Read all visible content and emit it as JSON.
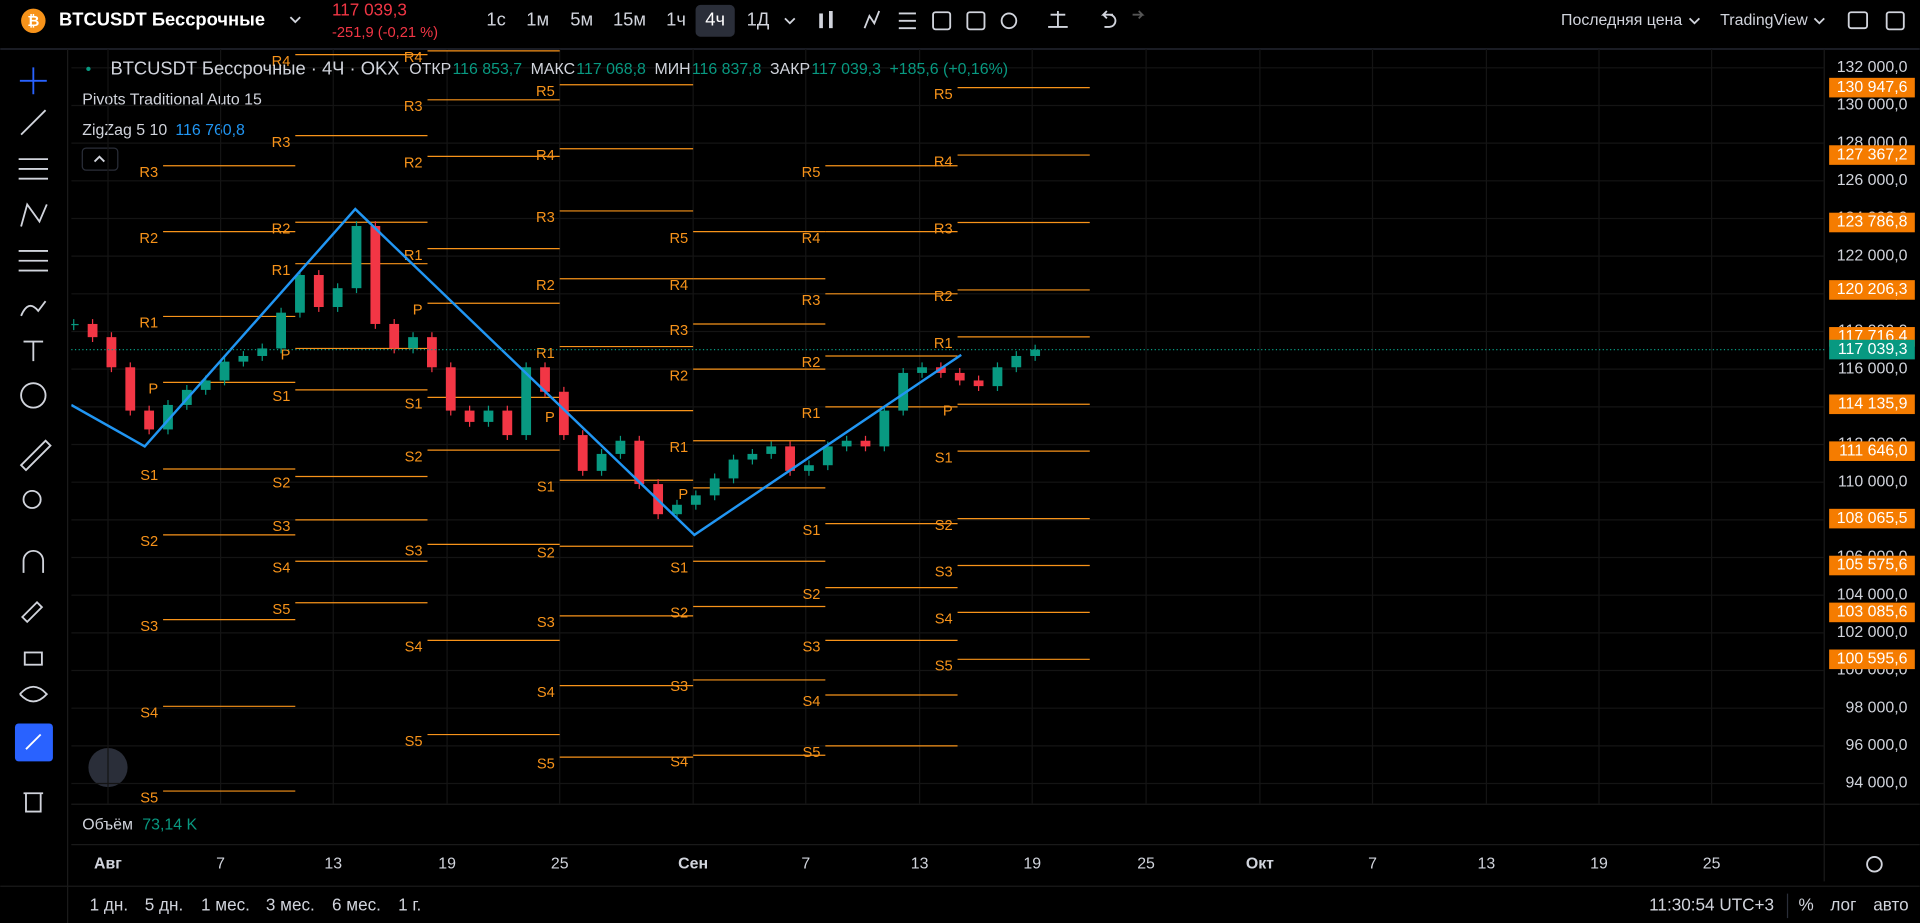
{
  "header": {
    "symbol": "BTCUSDT Бессрочные",
    "price": "117 039,3",
    "change": "-251,9 (-0,21 %)",
    "intervals": [
      "1с",
      "1м",
      "5м",
      "15м",
      "1ч",
      "4ч",
      "1Д"
    ],
    "price_type": "Последняя цена",
    "broker": "TradingView"
  },
  "legend": {
    "title": "BTCUSDT Бессрочные · 4Ч · OKX",
    "ohlc": [
      {
        "label": "ОТКР",
        "value": "116 853,7"
      },
      {
        "label": "МАКС",
        "value": "117 068,8"
      },
      {
        "label": "МИН",
        "value": "116 837,8"
      },
      {
        "label": "ЗАКР",
        "value": "117 039,3"
      }
    ],
    "change": "+185,6 (+0,16%)",
    "indicators": [
      {
        "name": "Pivots Traditional Auto 15"
      },
      {
        "name": "ZigZag 5 10",
        "value": "116 760,8"
      }
    ],
    "volume": {
      "name": "Объём",
      "value": "73,14 K"
    }
  },
  "price_axis": {
    "ylim": [
      92900,
      133000
    ],
    "ticks": [
      {
        "value": 132000,
        "label": "132 000,0"
      },
      {
        "value": 130000,
        "label": "130 000,0"
      },
      {
        "value": 128000,
        "label": "128 000,0"
      },
      {
        "value": 126000,
        "label": "126 000,0"
      },
      {
        "value": 124000,
        "label": "124 000,0"
      },
      {
        "value": 122000,
        "label": "122 000,0"
      },
      {
        "value": 120000,
        "label": "120 000,0"
      },
      {
        "value": 118000,
        "label": "118 000,0"
      },
      {
        "value": 116000,
        "label": "116 000,0"
      },
      {
        "value": 114000,
        "label": "114 000,0"
      },
      {
        "value": 112000,
        "label": "112 000,0"
      },
      {
        "value": 110000,
        "label": "110 000,0"
      },
      {
        "value": 108000,
        "label": "108 000,0"
      },
      {
        "value": 106000,
        "label": "106 000,0"
      },
      {
        "value": 104000,
        "label": "104 000,0"
      },
      {
        "value": 102000,
        "label": "102 000,0"
      },
      {
        "value": 100000,
        "label": "100 000,0"
      },
      {
        "value": 98000,
        "label": "98 000,0"
      },
      {
        "value": 96000,
        "label": "96 000,0"
      },
      {
        "value": 94000,
        "label": "94 000,0"
      }
    ],
    "last_price": {
      "value": 117039.3,
      "label": "117 039,3"
    }
  },
  "time_axis": [
    "Авг",
    "7",
    "13",
    "19",
    "25",
    "Сен",
    "7",
    "13",
    "19",
    "25",
    "Окт",
    "7",
    "13",
    "19",
    "25"
  ],
  "candles": [
    118400,
    117700,
    116100,
    113800,
    112800,
    114100,
    114900,
    115400,
    116400,
    116700,
    117100,
    119000,
    121000,
    119300,
    120300,
    123600,
    118400,
    117100,
    117700,
    116100,
    113800,
    113200,
    113800,
    112500,
    116100,
    114800,
    112500,
    110600,
    111500,
    112200,
    109900,
    108300,
    108800,
    109300,
    110200,
    111200,
    111500,
    111900,
    110600,
    110900,
    111900,
    112200,
    111900,
    113800,
    115800,
    116100,
    115800,
    115400,
    115100,
    116100,
    116700,
    117039.3
  ],
  "zigzag": [
    114100,
    111900,
    124500,
    107200,
    116760.8
  ],
  "pivots": [
    {
      "levels": [
        {
          "name": "R3",
          "value": 126800
        },
        {
          "name": "R2",
          "value": 123300
        },
        {
          "name": "R1",
          "value": 118800
        },
        {
          "name": "P",
          "value": 115300
        },
        {
          "name": "S1",
          "value": 110700
        },
        {
          "name": "S2",
          "value": 107200
        },
        {
          "name": "S3",
          "value": 102700
        },
        {
          "name": "S4",
          "value": 98100
        },
        {
          "name": "S5",
          "value": 93600
        }
      ]
    },
    {
      "levels": [
        {
          "name": "R4",
          "value": 132700
        },
        {
          "name": "R3",
          "value": 128400
        },
        {
          "name": "R2",
          "value": 123800
        },
        {
          "name": "R1",
          "value": 121600
        },
        {
          "name": "P",
          "value": 117100
        },
        {
          "name": "S1",
          "value": 114900
        },
        {
          "name": "S2",
          "value": 110300
        },
        {
          "name": "S3",
          "value": 108000
        },
        {
          "name": "S4",
          "value": 105800
        },
        {
          "name": "S5",
          "value": 103600
        }
      ]
    },
    {
      "levels": [
        {
          "name": "R4",
          "value": 132900
        },
        {
          "name": "R3",
          "value": 130300
        },
        {
          "name": "R2",
          "value": 127300
        },
        {
          "name": "R1",
          "value": 122400
        },
        {
          "name": "P",
          "value": 119500
        },
        {
          "name": "S1",
          "value": 114500
        },
        {
          "name": "S2",
          "value": 111700
        },
        {
          "name": "S3",
          "value": 106700
        },
        {
          "name": "S4",
          "value": 101600
        },
        {
          "name": "S5",
          "value": 96600
        }
      ]
    },
    {
      "levels": [
        {
          "name": "R5",
          "value": 131100
        },
        {
          "name": "R4",
          "value": 127700
        },
        {
          "name": "R3",
          "value": 124400
        },
        {
          "name": "R2",
          "value": 120800
        },
        {
          "name": "R1",
          "value": 117200
        },
        {
          "name": "P",
          "value": 113800
        },
        {
          "name": "S1",
          "value": 110100
        },
        {
          "name": "S2",
          "value": 106600
        },
        {
          "name": "S3",
          "value": 102900
        },
        {
          "name": "S4",
          "value": 99200
        },
        {
          "name": "S5",
          "value": 95400
        }
      ]
    },
    {
      "levels": [
        {
          "name": "R5",
          "value": 123300
        },
        {
          "name": "R4",
          "value": 120800
        },
        {
          "name": "R3",
          "value": 118400
        },
        {
          "name": "R2",
          "value": 116000
        },
        {
          "name": "R1",
          "value": 112200
        },
        {
          "name": "P",
          "value": 109700
        },
        {
          "name": "S1",
          "value": 105800
        },
        {
          "name": "S2",
          "value": 103400
        },
        {
          "name": "S3",
          "value": 99500
        },
        {
          "name": "S4",
          "value": 95500
        }
      ]
    },
    {
      "levels": [
        {
          "name": "R5",
          "value": 126800
        },
        {
          "name": "R4",
          "value": 123300
        },
        {
          "name": "R3",
          "value": 120000
        },
        {
          "name": "R2",
          "value": 116700
        },
        {
          "name": "R1",
          "value": 114000
        },
        {
          "name": "S1",
          "value": 107800
        },
        {
          "name": "S2",
          "value": 104400
        },
        {
          "name": "S3",
          "value": 101600
        },
        {
          "name": "S4",
          "value": 98700
        },
        {
          "name": "S5",
          "value": 96000
        }
      ]
    },
    {
      "levels": [
        {
          "name": "R5",
          "value": 130947.6,
          "label": "130 947,6"
        },
        {
          "name": "R4",
          "value": 127367.2,
          "label": "127 367,2"
        },
        {
          "name": "R3",
          "value": 123786.8,
          "label": "123 786,8"
        },
        {
          "name": "R2",
          "value": 120206.3,
          "label": "120 206,3"
        },
        {
          "name": "R1",
          "value": 117716.4,
          "label": "117 716,4"
        },
        {
          "name": "P",
          "value": 114135.9,
          "label": "114 135,9"
        },
        {
          "name": "S1",
          "value": 111646.0,
          "label": "111 646,0"
        },
        {
          "name": "S2",
          "value": 108065.5,
          "label": "108 065,5"
        },
        {
          "name": "S3",
          "value": 105575.6,
          "label": "105 575,6"
        },
        {
          "name": "S4",
          "value": 103085.6,
          "label": "103 085,6"
        },
        {
          "name": "S5",
          "value": 100595.6,
          "label": "100 595,6"
        }
      ]
    }
  ],
  "range_buttons": [
    "1 дн.",
    "5 дн.",
    "1 мес.",
    "3 мес.",
    "6 мес.",
    "1 г."
  ],
  "clock": "11:30:54 UTC+3",
  "scale_buttons": [
    "%",
    "лог",
    "авто"
  ]
}
